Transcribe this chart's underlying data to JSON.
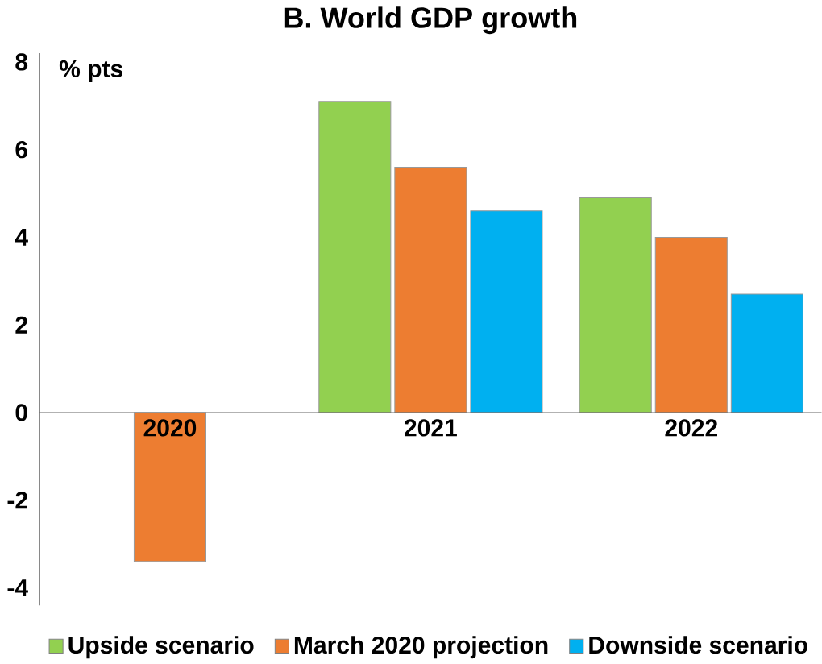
{
  "chart_data": {
    "type": "bar",
    "title": "B. World GDP growth",
    "ylabel": "% pts",
    "categories": [
      "2020",
      "2021",
      "2022"
    ],
    "series": [
      {
        "name": "Upside scenario",
        "color": "#92d050",
        "values": [
          null,
          7.1,
          4.9
        ]
      },
      {
        "name": "March 2020 projection",
        "color": "#ed7d31",
        "values": [
          -3.4,
          5.6,
          4.0
        ]
      },
      {
        "name": "Downside scenario",
        "color": "#00b0f0",
        "values": [
          null,
          4.6,
          2.7
        ]
      }
    ],
    "ylim": [
      -4.4,
      8.2
    ],
    "yticks": [
      -4,
      -2,
      0,
      2,
      4,
      6,
      8
    ],
    "grid": false,
    "legend": "bottom"
  }
}
